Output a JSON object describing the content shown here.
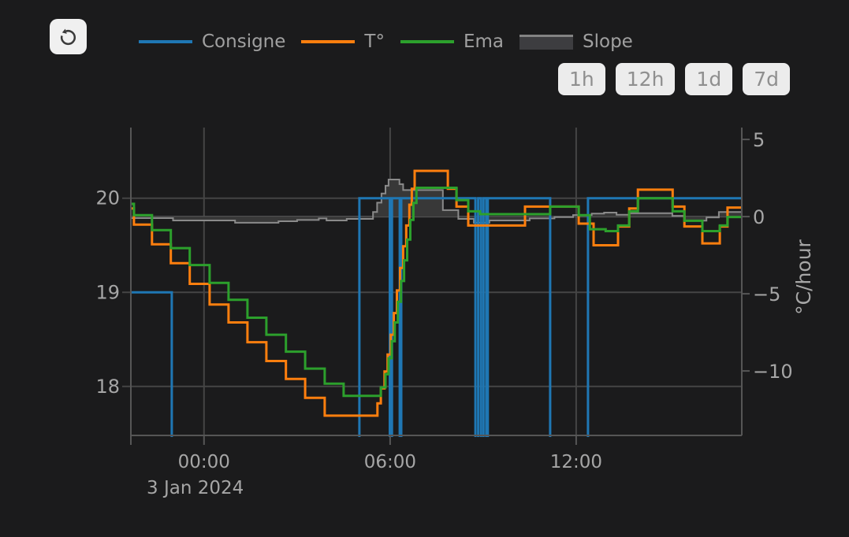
{
  "toolbar": {
    "refresh_tooltip": "refresh"
  },
  "legend": {
    "items": [
      {
        "key": "consigne",
        "label": "Consigne",
        "swatch": "line",
        "color": "#1f77b4"
      },
      {
        "key": "temperature",
        "label": "T°",
        "swatch": "line",
        "color": "#ff7f0e"
      },
      {
        "key": "ema",
        "label": "Ema",
        "swatch": "line",
        "color": "#2ca02c"
      },
      {
        "key": "slope",
        "label": "Slope",
        "swatch": "area",
        "color": "#3d3d40",
        "stroke": "#838383"
      }
    ]
  },
  "range_buttons": [
    {
      "label": "1h"
    },
    {
      "label": "12h"
    },
    {
      "label": "1d"
    },
    {
      "label": "7d"
    }
  ],
  "chart_data": {
    "type": "line",
    "title": "",
    "x_unit": "hours relative to 2024-01-03 00:00",
    "x_range": [
      -2.36,
      17.34
    ],
    "x_ticks": [
      {
        "t": 0,
        "label": "00:00"
      },
      {
        "t": 6,
        "label": "06:00"
      },
      {
        "t": 12,
        "label": "12:00"
      }
    ],
    "x_date_label": "3 Jan 2024",
    "y_left": {
      "label": "",
      "range": [
        17.48,
        20.75
      ],
      "ticks": [
        20,
        19,
        18
      ],
      "tick_labels": [
        "20",
        "19",
        "18"
      ]
    },
    "y_right": {
      "label": "°C/hour",
      "range": [
        -14.18,
        5.77
      ],
      "ticks": [
        5,
        0,
        -5,
        -10
      ],
      "tick_labels": [
        "5",
        "0",
        "−5",
        "−10"
      ],
      "zeroline": 0
    },
    "grid": true,
    "legend_position": "top",
    "series": [
      {
        "key": "slope",
        "name": "Slope",
        "axis": "right",
        "mode": "step-area",
        "color": "#8a8a8a",
        "fill": "#383838",
        "points": [
          [
            -2.36,
            -0.1
          ],
          [
            -1.0,
            -0.25
          ],
          [
            1.0,
            -0.4
          ],
          [
            2.4,
            -0.3
          ],
          [
            3.0,
            -0.22
          ],
          [
            3.7,
            -0.12
          ],
          [
            3.95,
            -0.25
          ],
          [
            4.6,
            -0.15
          ],
          [
            5.45,
            0.3
          ],
          [
            5.58,
            0.9
          ],
          [
            5.72,
            1.5
          ],
          [
            5.85,
            2.0
          ],
          [
            5.95,
            2.4
          ],
          [
            6.3,
            2.1
          ],
          [
            6.42,
            1.72
          ],
          [
            7.7,
            0.42
          ],
          [
            8.2,
            -0.15
          ],
          [
            8.7,
            -0.4
          ],
          [
            9.2,
            -0.25
          ],
          [
            10.5,
            -0.12
          ],
          [
            11.3,
            -0.03
          ],
          [
            11.9,
            0.1
          ],
          [
            12.5,
            0.2
          ],
          [
            12.9,
            0.26
          ],
          [
            13.3,
            0.12
          ],
          [
            13.7,
            0.22
          ],
          [
            15.1,
            0.05
          ],
          [
            15.5,
            -0.26
          ],
          [
            16.2,
            -0.05
          ],
          [
            16.6,
            0.3
          ]
        ]
      },
      {
        "key": "consigne",
        "name": "Consigne",
        "axis": "left",
        "mode": "step-segments",
        "color": "#1f77b4",
        "segments": [
          [
            -2.36,
            -1.04,
            19
          ],
          [
            5.01,
            5.99,
            20
          ],
          [
            6.06,
            6.31,
            20
          ],
          [
            6.36,
            8.75,
            20
          ],
          [
            8.84,
            8.93,
            20
          ],
          [
            9.01,
            9.1,
            20
          ],
          [
            9.15,
            11.16,
            20
          ],
          [
            12.38,
            17.34,
            20
          ]
        ]
      },
      {
        "key": "temperature",
        "name": "T°",
        "axis": "left",
        "mode": "step",
        "color": "#ff7f0e",
        "points": [
          [
            -2.36,
            19.89
          ],
          [
            -2.26,
            19.72
          ],
          [
            -1.68,
            19.51
          ],
          [
            -1.07,
            19.31
          ],
          [
            -0.46,
            19.09
          ],
          [
            0.18,
            18.87
          ],
          [
            0.79,
            18.68
          ],
          [
            1.4,
            18.47
          ],
          [
            2.01,
            18.27
          ],
          [
            2.64,
            18.08
          ],
          [
            3.26,
            17.88
          ],
          [
            3.89,
            17.69
          ],
          [
            5.59,
            17.82
          ],
          [
            5.7,
            17.98
          ],
          [
            5.82,
            18.16
          ],
          [
            5.92,
            18.34
          ],
          [
            6.02,
            18.55
          ],
          [
            6.12,
            18.78
          ],
          [
            6.22,
            19.02
          ],
          [
            6.32,
            19.26
          ],
          [
            6.42,
            19.49
          ],
          [
            6.52,
            19.71
          ],
          [
            6.62,
            19.93
          ],
          [
            6.7,
            20.1
          ],
          [
            6.79,
            20.29
          ],
          [
            7.86,
            20.1
          ],
          [
            8.14,
            19.91
          ],
          [
            8.52,
            19.71
          ],
          [
            10.35,
            19.91
          ],
          [
            12.08,
            19.73
          ],
          [
            12.56,
            19.5
          ],
          [
            13.35,
            19.7
          ],
          [
            13.71,
            19.89
          ],
          [
            13.99,
            20.09
          ],
          [
            15.11,
            19.91
          ],
          [
            15.49,
            19.7
          ],
          [
            16.07,
            19.52
          ],
          [
            16.63,
            19.7
          ],
          [
            16.88,
            19.9
          ]
        ]
      },
      {
        "key": "ema",
        "name": "Ema",
        "axis": "left",
        "mode": "step",
        "color": "#2ca02c",
        "points": [
          [
            -2.36,
            19.94
          ],
          [
            -2.26,
            19.82
          ],
          [
            -1.68,
            19.66
          ],
          [
            -1.07,
            19.47
          ],
          [
            -0.46,
            19.29
          ],
          [
            0.18,
            19.1
          ],
          [
            0.79,
            18.92
          ],
          [
            1.4,
            18.73
          ],
          [
            2.01,
            18.55
          ],
          [
            2.64,
            18.37
          ],
          [
            3.26,
            18.19
          ],
          [
            3.89,
            18.03
          ],
          [
            4.5,
            17.9
          ],
          [
            5.7,
            17.99
          ],
          [
            5.85,
            18.13
          ],
          [
            5.95,
            18.3
          ],
          [
            6.05,
            18.48
          ],
          [
            6.15,
            18.68
          ],
          [
            6.25,
            18.9
          ],
          [
            6.35,
            19.12
          ],
          [
            6.45,
            19.34
          ],
          [
            6.55,
            19.56
          ],
          [
            6.65,
            19.77
          ],
          [
            6.75,
            19.95
          ],
          [
            6.85,
            20.11
          ],
          [
            8.14,
            19.98
          ],
          [
            8.52,
            19.86
          ],
          [
            8.9,
            19.83
          ],
          [
            11.16,
            19.91
          ],
          [
            12.08,
            19.82
          ],
          [
            12.44,
            19.67
          ],
          [
            12.95,
            19.65
          ],
          [
            13.35,
            19.71
          ],
          [
            13.71,
            19.86
          ],
          [
            13.99,
            20.0
          ],
          [
            15.11,
            19.86
          ],
          [
            15.49,
            19.76
          ],
          [
            16.07,
            19.65
          ],
          [
            16.63,
            19.71
          ],
          [
            16.88,
            19.8
          ]
        ]
      }
    ]
  }
}
